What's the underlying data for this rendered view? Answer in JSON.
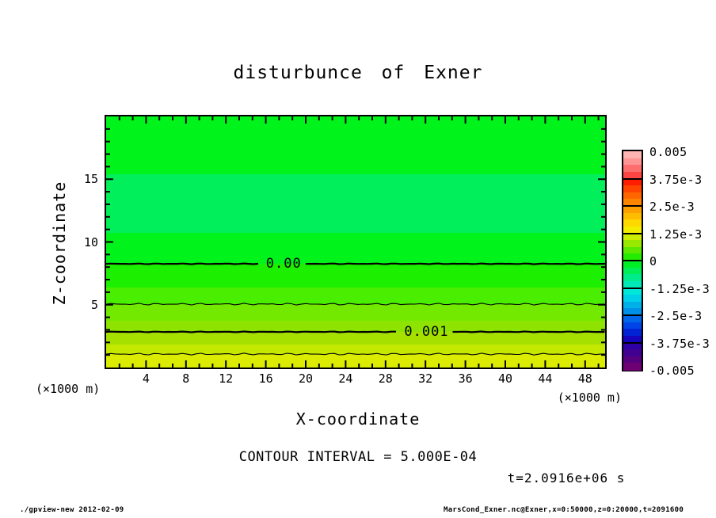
{
  "title": "disturbunce of Exner",
  "axes": {
    "x_label": "X-coordinate",
    "y_label": "Z-coordinate",
    "unit": "(×1000 m)"
  },
  "annotations": {
    "contour_interval": "CONTOUR INTERVAL = 5.000E-04",
    "time": "t=2.0916e+06 s"
  },
  "footer": {
    "left": "./gpview-new  2012-02-09",
    "right": "MarsCond_Exner.nc@Exner,x=0:50000,z=0:20000,t=2091600"
  },
  "chart_data": {
    "type": "heatmap",
    "title": "disturbunce of Exner",
    "xlabel": "X-coordinate",
    "ylabel": "Z-coordinate",
    "x_unit": "(×1000 m)",
    "y_unit": "(×1000 m)",
    "xlim": [
      0,
      50
    ],
    "ylim": [
      0,
      20
    ],
    "x_major_ticks": [
      4,
      8,
      12,
      16,
      20,
      24,
      28,
      32,
      36,
      40,
      44,
      48
    ],
    "x_minor_step": 1.33333,
    "y_major_ticks": [
      5,
      10,
      15
    ],
    "y_minor_step": 1,
    "grid": false,
    "contour_interval": 0.0005,
    "time_seconds": 2091600,
    "bands": [
      {
        "z_from": 15.4,
        "z_to": 20.0,
        "value_range": "-3.125e-4 to 0",
        "color": "#00f41c"
      },
      {
        "z_from": 10.7,
        "z_to": 15.4,
        "value_range": "-6.25e-4 to -3.125e-4",
        "color": "#00ef5a"
      },
      {
        "z_from": 8.26,
        "z_to": 10.7,
        "value_range": "-3.125e-4 to 0",
        "color": "#00f41c"
      },
      {
        "z_from": 6.37,
        "z_to": 8.26,
        "value_range": "0 to 3.125e-4",
        "color": "#1cf000"
      },
      {
        "z_from": 5.05,
        "z_to": 6.37,
        "value_range": "3.125e-4 to 5e-4",
        "color": "#49ee00"
      },
      {
        "z_from": 3.72,
        "z_to": 5.05,
        "value_range": "5e-4 to 6.25e-4",
        "color": "#73e900"
      },
      {
        "z_from": 2.84,
        "z_to": 3.72,
        "value_range": "6.25e-4 to 1e-3",
        "color": "#8ee300"
      },
      {
        "z_from": 1.83,
        "z_to": 2.84,
        "value_range": "1e-3 to 1.25e-3",
        "color": "#a5e000"
      },
      {
        "z_from": 1.07,
        "z_to": 1.83,
        "value_range": "1.25e-3 to 1.5e-3",
        "color": "#c4e800"
      },
      {
        "z_from": 0.0,
        "z_to": 1.07,
        "value_range": "above 1.5e-3",
        "color": "#dcec00"
      }
    ],
    "contours": [
      {
        "value": 0.0,
        "z": 8.26,
        "thick": true,
        "label": "0.00",
        "label_x": 17.8
      },
      {
        "value": 0.0005,
        "z": 5.05,
        "thick": false,
        "label": null,
        "label_x": null
      },
      {
        "value": 0.001,
        "z": 2.84,
        "thick": true,
        "label": "0.001",
        "label_x": 32.1
      },
      {
        "value": 0.0015,
        "z": 1.07,
        "thick": false,
        "label": null,
        "label_x": null
      }
    ],
    "colorbar": {
      "min": -0.005,
      "max": 0.005,
      "tick_labels": [
        "0.005",
        "3.75e-3",
        "2.5e-3",
        "1.25e-3",
        "0",
        "-1.25e-3",
        "-2.5e-3",
        "-3.75e-3",
        "-0.005"
      ],
      "palette_top_to_bottom": [
        "#ffb4b4",
        "#ff9494",
        "#ff6e6e",
        "#ff4444",
        "#ff1c00",
        "#ff4400",
        "#ff6600",
        "#ff8400",
        "#ffa000",
        "#ffbc00",
        "#ffd800",
        "#f2ec00",
        "#ccec00",
        "#98e800",
        "#5ce800",
        "#24ec00",
        "#00ee24",
        "#00ee58",
        "#00ec8c",
        "#00eab8",
        "#00e8d8",
        "#00d0e8",
        "#00b0e8",
        "#0090e8",
        "#0068e8",
        "#0044e8",
        "#0024d4",
        "#1404bc",
        "#2c00a4",
        "#420090",
        "#560080",
        "#6e0074"
      ]
    }
  }
}
